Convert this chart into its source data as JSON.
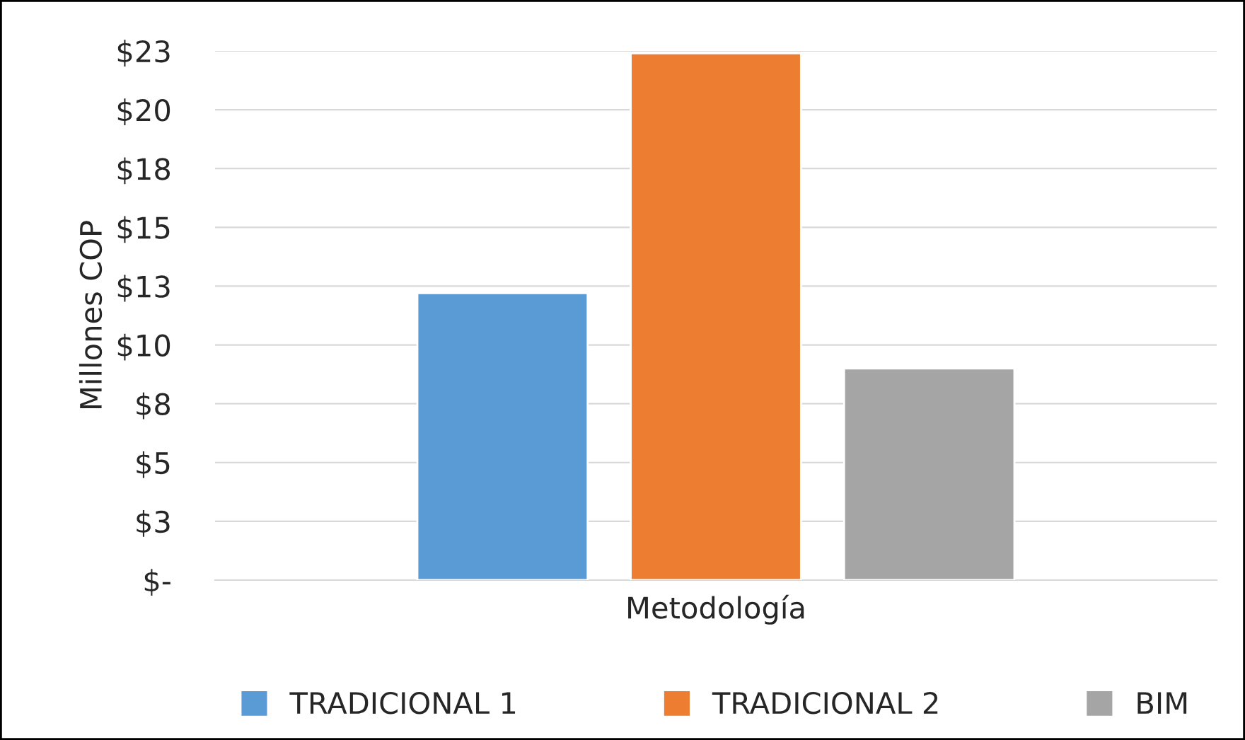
{
  "chart_data": {
    "type": "bar",
    "xlabel": "Metodología",
    "ylabel": "Millones COP",
    "categories": [
      null
    ],
    "series": [
      {
        "name": "TRADICIONAL 1",
        "color": "#5b9bd5",
        "values": [
          12.2
        ]
      },
      {
        "name": "TRADICIONAL 2",
        "color": "#ed7d31",
        "values": [
          22.4
        ]
      },
      {
        "name": "BIM",
        "color": "#a5a5a5",
        "values": [
          9.0
        ]
      }
    ],
    "ylim": [
      0,
      22.5
    ],
    "yticks": [
      {
        "value": 0,
        "label": "$-"
      },
      {
        "value": 2.5,
        "label": "$3"
      },
      {
        "value": 5,
        "label": "$5"
      },
      {
        "value": 7.5,
        "label": "$8"
      },
      {
        "value": 10,
        "label": "$10"
      },
      {
        "value": 12.5,
        "label": "$13"
      },
      {
        "value": 15,
        "label": "$15"
      },
      {
        "value": 17.5,
        "label": "$18"
      },
      {
        "value": 20,
        "label": "$20"
      },
      {
        "value": 22.5,
        "label": "$23"
      }
    ],
    "grid": "y",
    "legend": "bottom"
  }
}
